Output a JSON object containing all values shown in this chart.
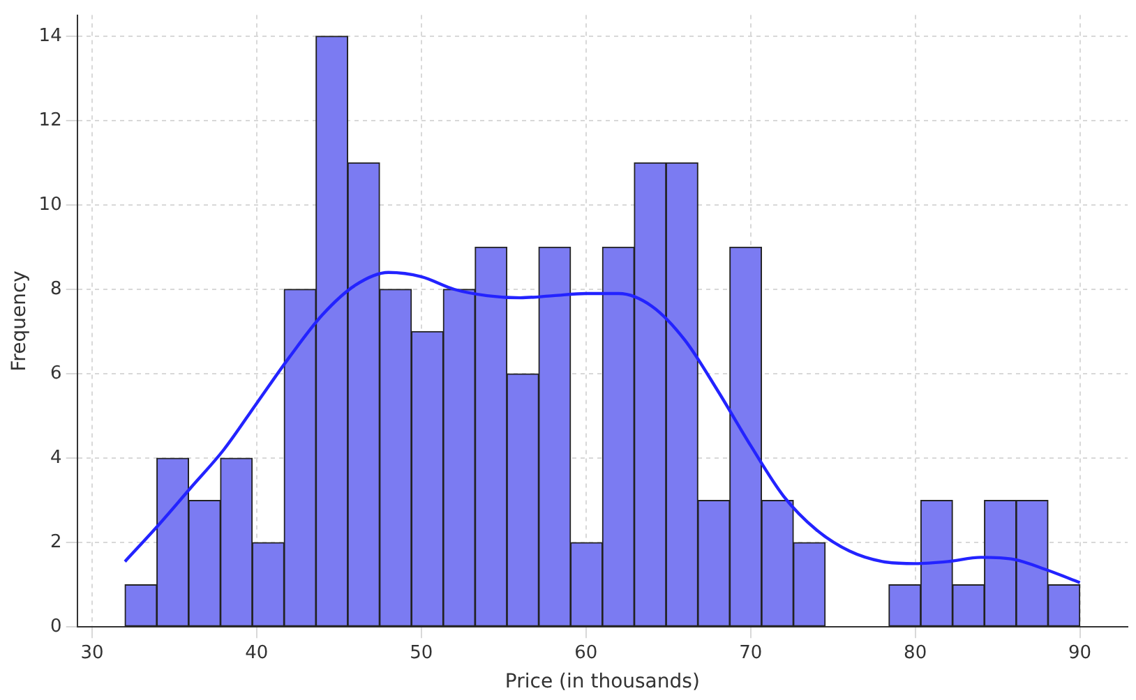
{
  "chart_data": {
    "type": "histogram",
    "xlabel": "Price (in thousands)",
    "ylabel": "Frequency",
    "bins": [
      32,
      33.933,
      35.867,
      37.8,
      39.733,
      41.667,
      43.6,
      45.533,
      47.467,
      49.4,
      51.333,
      53.267,
      55.2,
      57.133,
      59.067,
      61,
      62.933,
      64.867,
      66.8,
      68.733,
      70.667,
      72.6,
      74.533,
      76.467,
      78.4,
      80.333,
      82.267,
      84.2,
      86.133,
      88.067,
      90
    ],
    "values": [
      1,
      4,
      3,
      4,
      2,
      8,
      14,
      11,
      8,
      7,
      8,
      9,
      6,
      9,
      2,
      9,
      11,
      11,
      3,
      9,
      3,
      2,
      0,
      0,
      1,
      3,
      1,
      3,
      3,
      1
    ],
    "color": "#7b7bf2",
    "series": [
      {
        "type": "line",
        "color": "#2323ff",
        "x": [
          32,
          34,
          36,
          38,
          40,
          42,
          44,
          46,
          48,
          50,
          52,
          54,
          56,
          58,
          60,
          62,
          64,
          66,
          68,
          70,
          72,
          74,
          76,
          78,
          80,
          82,
          84,
          86,
          88,
          90
        ],
        "values": [
          1.55,
          2.4,
          3.3,
          4.2,
          5.3,
          6.4,
          7.4,
          8.1,
          8.4,
          8.3,
          8.0,
          7.85,
          7.8,
          7.85,
          7.9,
          7.9,
          7.6,
          6.8,
          5.6,
          4.3,
          3.1,
          2.3,
          1.8,
          1.55,
          1.5,
          1.55,
          1.65,
          1.6,
          1.35,
          1.05
        ]
      }
    ],
    "xlim": [
      29.1,
      92.9
    ],
    "xticks": [
      30,
      40,
      50,
      60,
      70,
      80,
      90
    ],
    "ylim": [
      0,
      14.5
    ],
    "yticks": [
      0,
      2,
      4,
      6,
      8,
      10,
      12,
      14
    ],
    "grid": true,
    "legend": false
  }
}
